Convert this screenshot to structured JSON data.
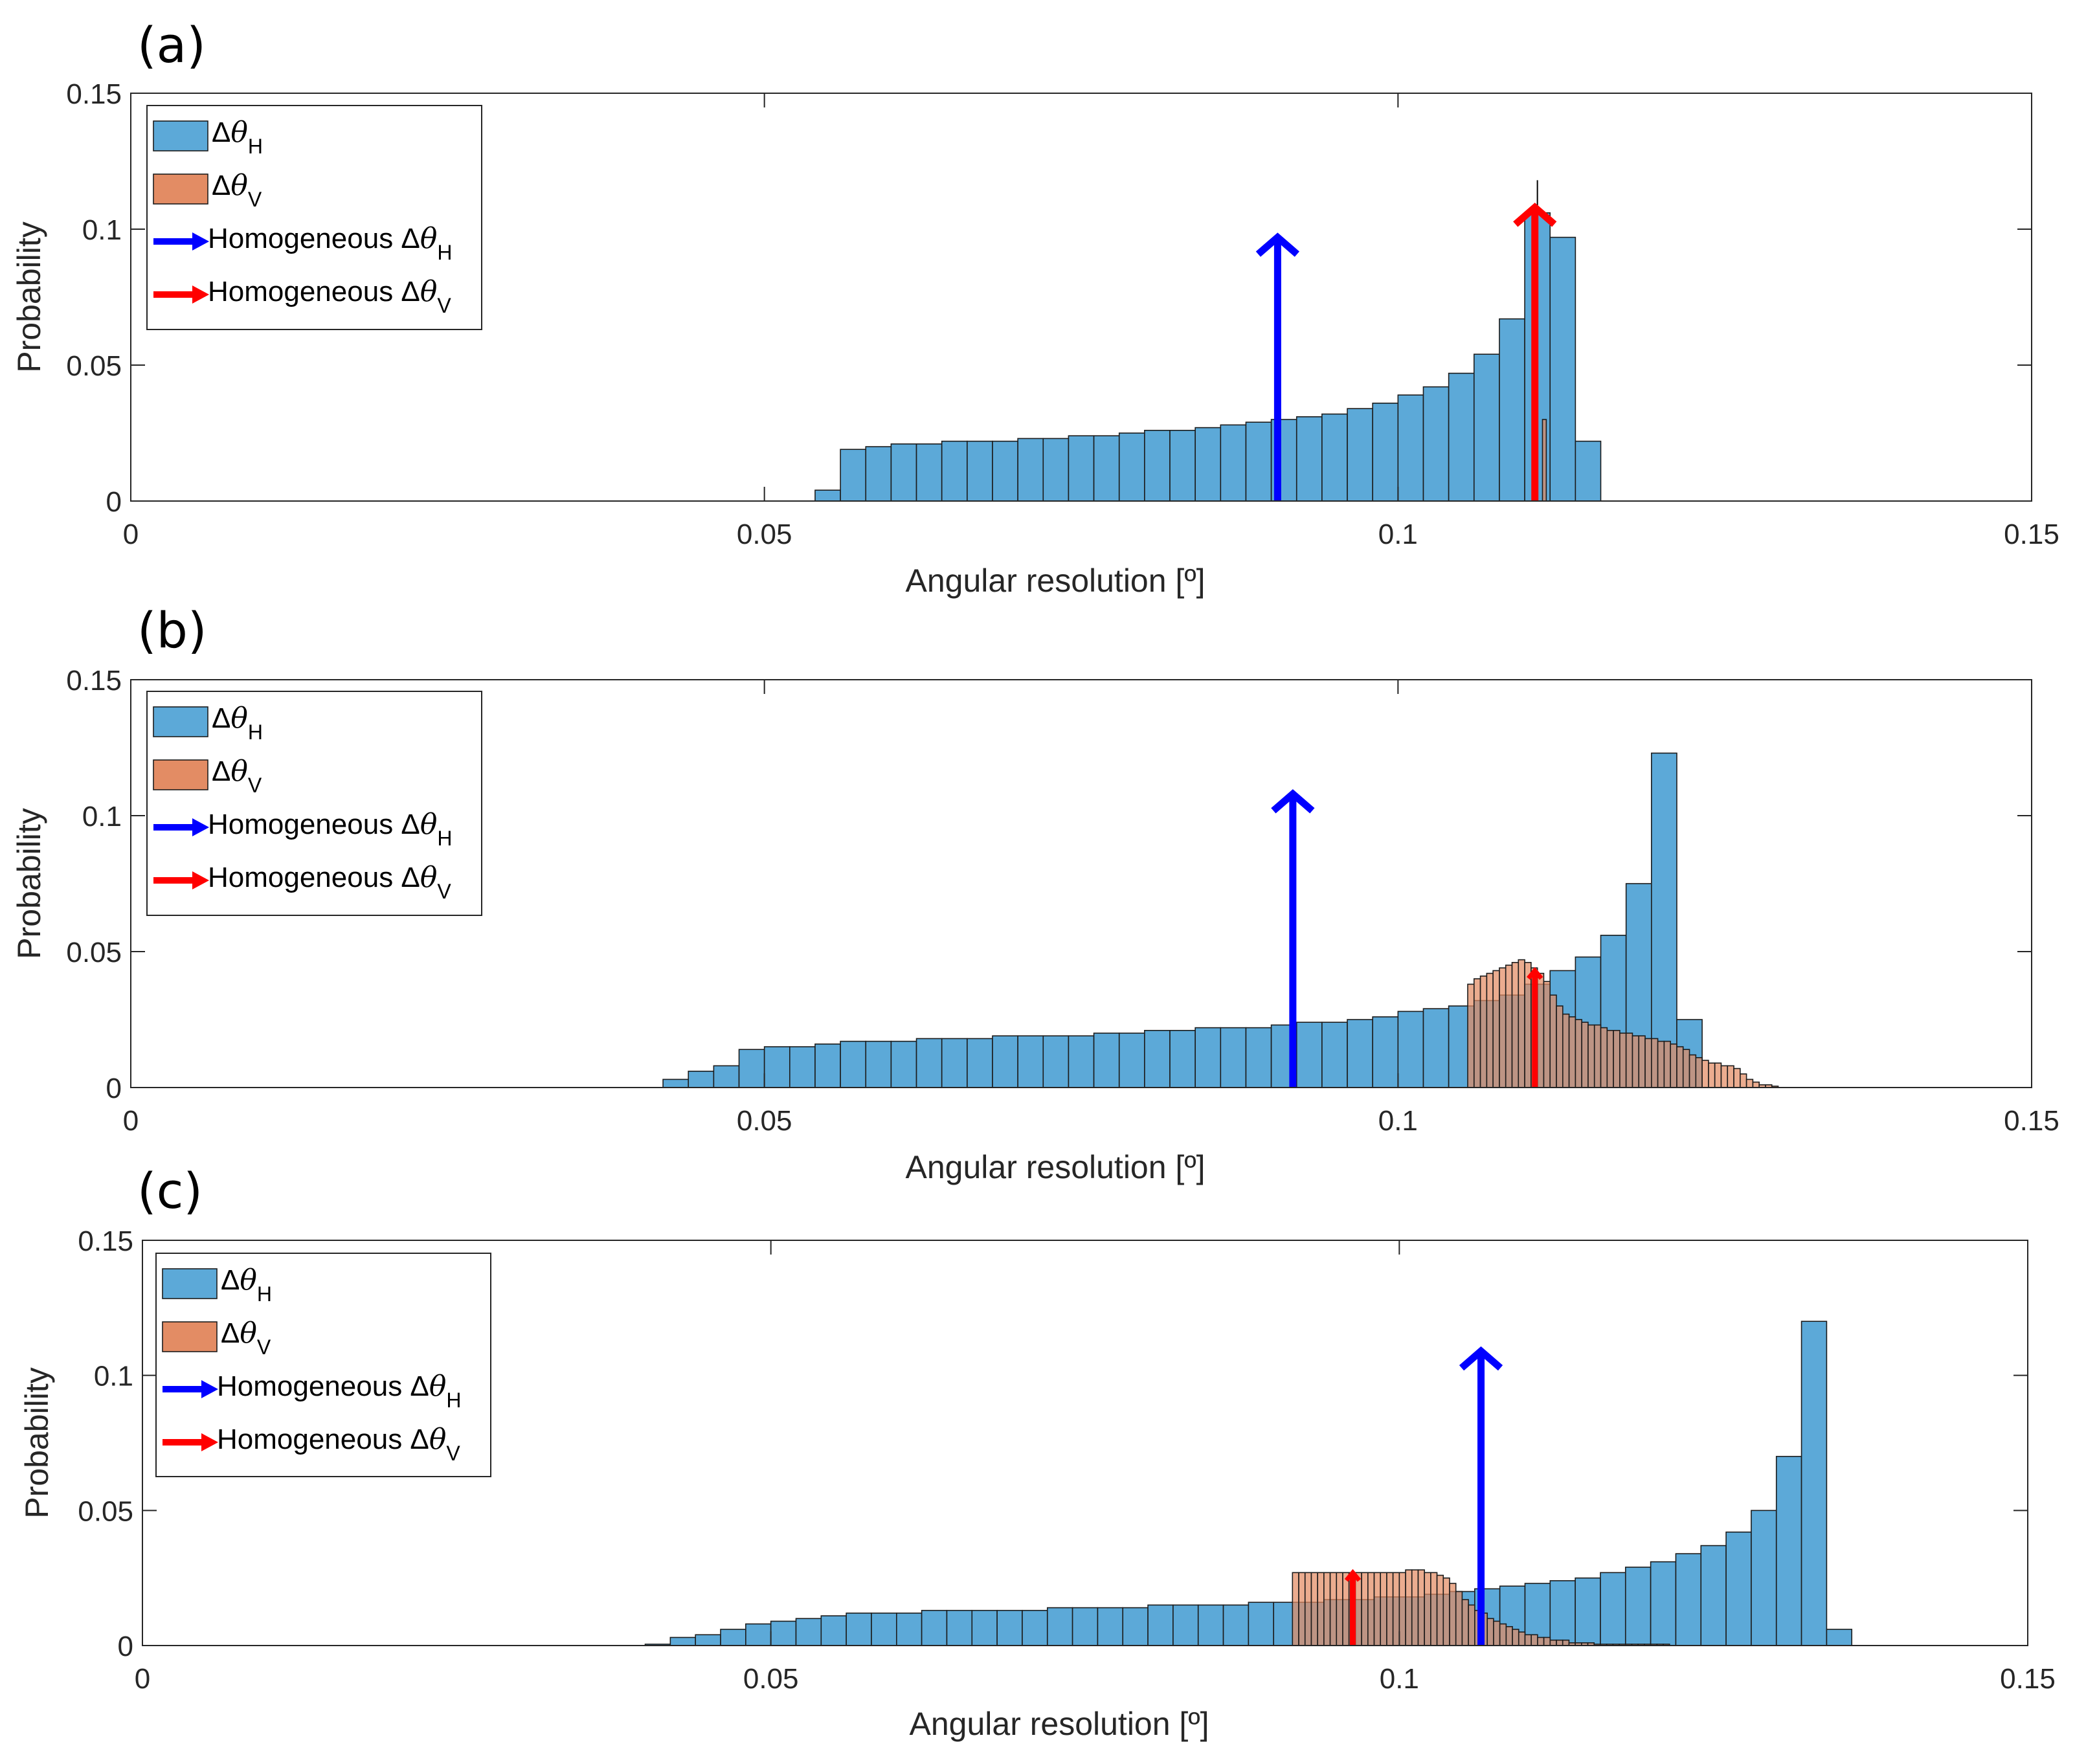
{
  "colors": {
    "h_fill": "#5ca9d8",
    "v_fill": "#e38c64",
    "bar_edge": "#1c1c1c",
    "blue_arrow": "#0000ff",
    "red_arrow": "#ff0000",
    "axis": "#262626",
    "black_line": "#000000"
  },
  "chart_data": [
    {
      "type": "bar",
      "panel_label": "(a)",
      "xlabel": "Angular resolution [º]",
      "ylabel": "Probability",
      "xlim": [
        0,
        0.15
      ],
      "ylim": [
        0,
        0.15
      ],
      "xticks": [
        0,
        0.05,
        0.1,
        0.15
      ],
      "xtick_labels": [
        "0",
        "0.05",
        "0.1",
        "0.15"
      ],
      "yticks": [
        0,
        0.05,
        0.1,
        0.15
      ],
      "ytick_labels": [
        "0",
        "0.05",
        "0.1",
        "0.15"
      ],
      "grid": false,
      "legend_position": "top-left",
      "legend": [
        {
          "kind": "patch",
          "series": "h",
          "symbol": "Δθ",
          "sub": "H"
        },
        {
          "kind": "patch",
          "series": "v",
          "symbol": "Δθ",
          "sub": "V"
        },
        {
          "kind": "arrow",
          "series": "h",
          "prefix": "Homogeneous ",
          "symbol": "Δθ",
          "sub": "H"
        },
        {
          "kind": "arrow",
          "series": "v",
          "prefix": "Homogeneous ",
          "symbol": "Δθ",
          "sub": "V"
        }
      ],
      "series": [
        {
          "name": "Δθ_H",
          "kind": "h",
          "bin_start": 0.054,
          "bin_width": 0.002,
          "values": [
            0.004,
            0.019,
            0.02,
            0.021,
            0.021,
            0.022,
            0.022,
            0.022,
            0.023,
            0.023,
            0.024,
            0.024,
            0.025,
            0.026,
            0.026,
            0.027,
            0.028,
            0.029,
            0.03,
            0.031,
            0.032,
            0.034,
            0.036,
            0.039,
            0.042,
            0.047,
            0.054,
            0.067,
            0.106,
            0.097,
            0.022
          ]
        },
        {
          "name": "Δθ_V",
          "kind": "v",
          "bin_start": 0.1114,
          "bin_width": 0.0003,
          "values": [
            0.03
          ]
        }
      ],
      "vlines": [
        {
          "x": 0.111,
          "y0": 0,
          "y1": 0.118
        }
      ],
      "arrows": [
        {
          "name": "Homogeneous Δθ_H",
          "kind": "h",
          "x": 0.0905,
          "y0": 0,
          "y1": 0.097
        },
        {
          "name": "Homogeneous Δθ_V",
          "kind": "v",
          "x": 0.1108,
          "y0": 0,
          "y1": 0.108
        }
      ]
    },
    {
      "type": "bar",
      "panel_label": "(b)",
      "xlabel": "Angular resolution [º]",
      "ylabel": "Probability",
      "xlim": [
        0,
        0.15
      ],
      "ylim": [
        0,
        0.15
      ],
      "xticks": [
        0,
        0.05,
        0.1,
        0.15
      ],
      "xtick_labels": [
        "0",
        "0.05",
        "0.1",
        "0.15"
      ],
      "yticks": [
        0,
        0.05,
        0.1,
        0.15
      ],
      "ytick_labels": [
        "0",
        "0.05",
        "0.1",
        "0.15"
      ],
      "grid": false,
      "legend_position": "top-left",
      "legend": [
        {
          "kind": "patch",
          "series": "h",
          "symbol": "Δθ",
          "sub": "H"
        },
        {
          "kind": "patch",
          "series": "v",
          "symbol": "Δθ",
          "sub": "V"
        },
        {
          "kind": "arrow",
          "series": "h",
          "prefix": "Homogeneous ",
          "symbol": "Δθ",
          "sub": "H"
        },
        {
          "kind": "arrow",
          "series": "v",
          "prefix": "Homogeneous ",
          "symbol": "Δθ",
          "sub": "V"
        }
      ],
      "series": [
        {
          "name": "Δθ_H",
          "kind": "h",
          "bin_start": 0.042,
          "bin_width": 0.002,
          "values": [
            0.003,
            0.006,
            0.008,
            0.014,
            0.015,
            0.015,
            0.016,
            0.017,
            0.017,
            0.017,
            0.018,
            0.018,
            0.018,
            0.019,
            0.019,
            0.019,
            0.019,
            0.02,
            0.02,
            0.021,
            0.021,
            0.022,
            0.022,
            0.022,
            0.023,
            0.024,
            0.024,
            0.025,
            0.026,
            0.028,
            0.029,
            0.03,
            0.032,
            0.034,
            0.038,
            0.043,
            0.048,
            0.056,
            0.075,
            0.123,
            0.025
          ]
        },
        {
          "name": "Δθ_V",
          "kind": "v",
          "bin_start": 0.1055,
          "bin_width": 0.0005,
          "values": [
            0.038,
            0.04,
            0.041,
            0.042,
            0.043,
            0.044,
            0.045,
            0.046,
            0.047,
            0.046,
            0.044,
            0.042,
            0.039,
            0.034,
            0.03,
            0.027,
            0.026,
            0.025,
            0.024,
            0.023,
            0.023,
            0.022,
            0.021,
            0.021,
            0.02,
            0.02,
            0.019,
            0.019,
            0.018,
            0.018,
            0.017,
            0.017,
            0.016,
            0.015,
            0.014,
            0.012,
            0.011,
            0.01,
            0.009,
            0.009,
            0.008,
            0.008,
            0.007,
            0.005,
            0.003,
            0.002,
            0.001,
            0.001,
            0.0005
          ]
        }
      ],
      "vlines": [],
      "arrows": [
        {
          "name": "Homogeneous Δθ_H",
          "kind": "h",
          "x": 0.0917,
          "y0": 0,
          "y1": 0.108
        },
        {
          "name": "Homogeneous Δθ_V",
          "kind": "v",
          "x": 0.1108,
          "y0": 0,
          "y1": 0.043
        }
      ]
    },
    {
      "type": "bar",
      "panel_label": "(c)",
      "xlabel": "Angular resolution [º]",
      "ylabel": "Probability",
      "xlim": [
        0,
        0.15
      ],
      "ylim": [
        0,
        0.15
      ],
      "xticks": [
        0,
        0.05,
        0.1,
        0.15
      ],
      "xtick_labels": [
        "0",
        "0.05",
        "0.1",
        "0.15"
      ],
      "yticks": [
        0,
        0.05,
        0.1,
        0.15
      ],
      "ytick_labels": [
        "0",
        "0.05",
        "0.1",
        "0.15"
      ],
      "grid": false,
      "legend_position": "top-left",
      "legend": [
        {
          "kind": "patch",
          "series": "h",
          "symbol": "Δθ",
          "sub": "H"
        },
        {
          "kind": "patch",
          "series": "v",
          "symbol": "Δθ",
          "sub": "V"
        },
        {
          "kind": "arrow",
          "series": "h",
          "prefix": "Homogeneous ",
          "symbol": "Δθ",
          "sub": "H"
        },
        {
          "kind": "arrow",
          "series": "v",
          "prefix": "Homogeneous ",
          "symbol": "Δθ",
          "sub": "V"
        }
      ],
      "series": [
        {
          "name": "Δθ_H",
          "kind": "h",
          "bin_start": 0.04,
          "bin_width": 0.002,
          "values": [
            0.0005,
            0.003,
            0.004,
            0.006,
            0.008,
            0.009,
            0.01,
            0.011,
            0.012,
            0.012,
            0.012,
            0.013,
            0.013,
            0.013,
            0.013,
            0.013,
            0.014,
            0.014,
            0.014,
            0.014,
            0.015,
            0.015,
            0.015,
            0.015,
            0.016,
            0.016,
            0.016,
            0.017,
            0.017,
            0.018,
            0.018,
            0.019,
            0.02,
            0.021,
            0.022,
            0.023,
            0.024,
            0.025,
            0.027,
            0.029,
            0.031,
            0.034,
            0.037,
            0.042,
            0.05,
            0.07,
            0.12,
            0.006
          ]
        },
        {
          "name": "Δθ_V",
          "kind": "v",
          "bin_start": 0.0915,
          "bin_width": 0.0005,
          "values": [
            0.027,
            0.027,
            0.027,
            0.027,
            0.027,
            0.027,
            0.027,
            0.027,
            0.027,
            0.027,
            0.027,
            0.027,
            0.027,
            0.027,
            0.027,
            0.027,
            0.027,
            0.027,
            0.028,
            0.028,
            0.028,
            0.027,
            0.027,
            0.026,
            0.025,
            0.023,
            0.02,
            0.017,
            0.015,
            0.013,
            0.012,
            0.01,
            0.009,
            0.008,
            0.007,
            0.006,
            0.005,
            0.004,
            0.004,
            0.003,
            0.003,
            0.002,
            0.002,
            0.002,
            0.001,
            0.001,
            0.001,
            0.001,
            0.0005,
            0.0005,
            0.0005,
            0.0005,
            0.0005,
            0.0005,
            0.0005,
            0.0005,
            0.0005,
            0.0005,
            0.0005,
            0.0005
          ]
        }
      ],
      "vlines": [],
      "arrows": [
        {
          "name": "Homogeneous Δθ_H",
          "kind": "h",
          "x": 0.1065,
          "y0": 0,
          "y1": 0.109
        },
        {
          "name": "Homogeneous Δθ_V",
          "kind": "v",
          "x": 0.0963,
          "y0": 0,
          "y1": 0.027
        }
      ]
    }
  ]
}
